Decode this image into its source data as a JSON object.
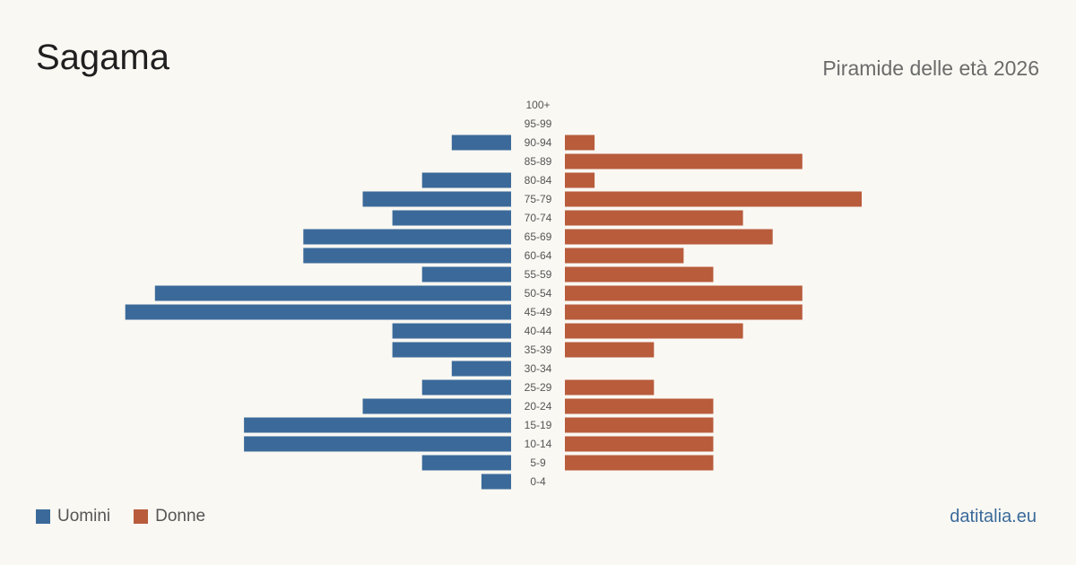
{
  "header": {
    "title": "Sagama",
    "subtitle": "Piramide delle età 2026"
  },
  "footer": {
    "source": "datitalia.eu"
  },
  "colors": {
    "men": "#3b6a9a",
    "women": "#b85c3c",
    "background": "#faf8f3"
  },
  "chart_data": {
    "type": "bar",
    "orientation": "horizontal-pyramid",
    "categories": [
      "100+",
      "95-99",
      "90-94",
      "85-89",
      "80-84",
      "75-79",
      "70-74",
      "65-69",
      "60-64",
      "55-59",
      "50-54",
      "45-49",
      "40-44",
      "35-39",
      "30-34",
      "25-29",
      "20-24",
      "15-19",
      "10-14",
      "5-9",
      "0-4"
    ],
    "series": [
      {
        "name": "Uomini",
        "color": "#3b6a9a",
        "values": [
          0,
          0,
          2,
          0,
          3,
          5,
          4,
          7,
          7,
          3,
          12,
          13,
          4,
          4,
          2,
          3,
          5,
          9,
          9,
          3,
          1
        ]
      },
      {
        "name": "Donne",
        "color": "#b85c3c",
        "values": [
          0,
          0,
          1,
          8,
          1,
          10,
          6,
          7,
          4,
          5,
          8,
          8,
          6,
          3,
          0,
          3,
          5,
          5,
          5,
          5,
          0
        ]
      }
    ],
    "legend_position": "bottom-left",
    "grid": false
  }
}
